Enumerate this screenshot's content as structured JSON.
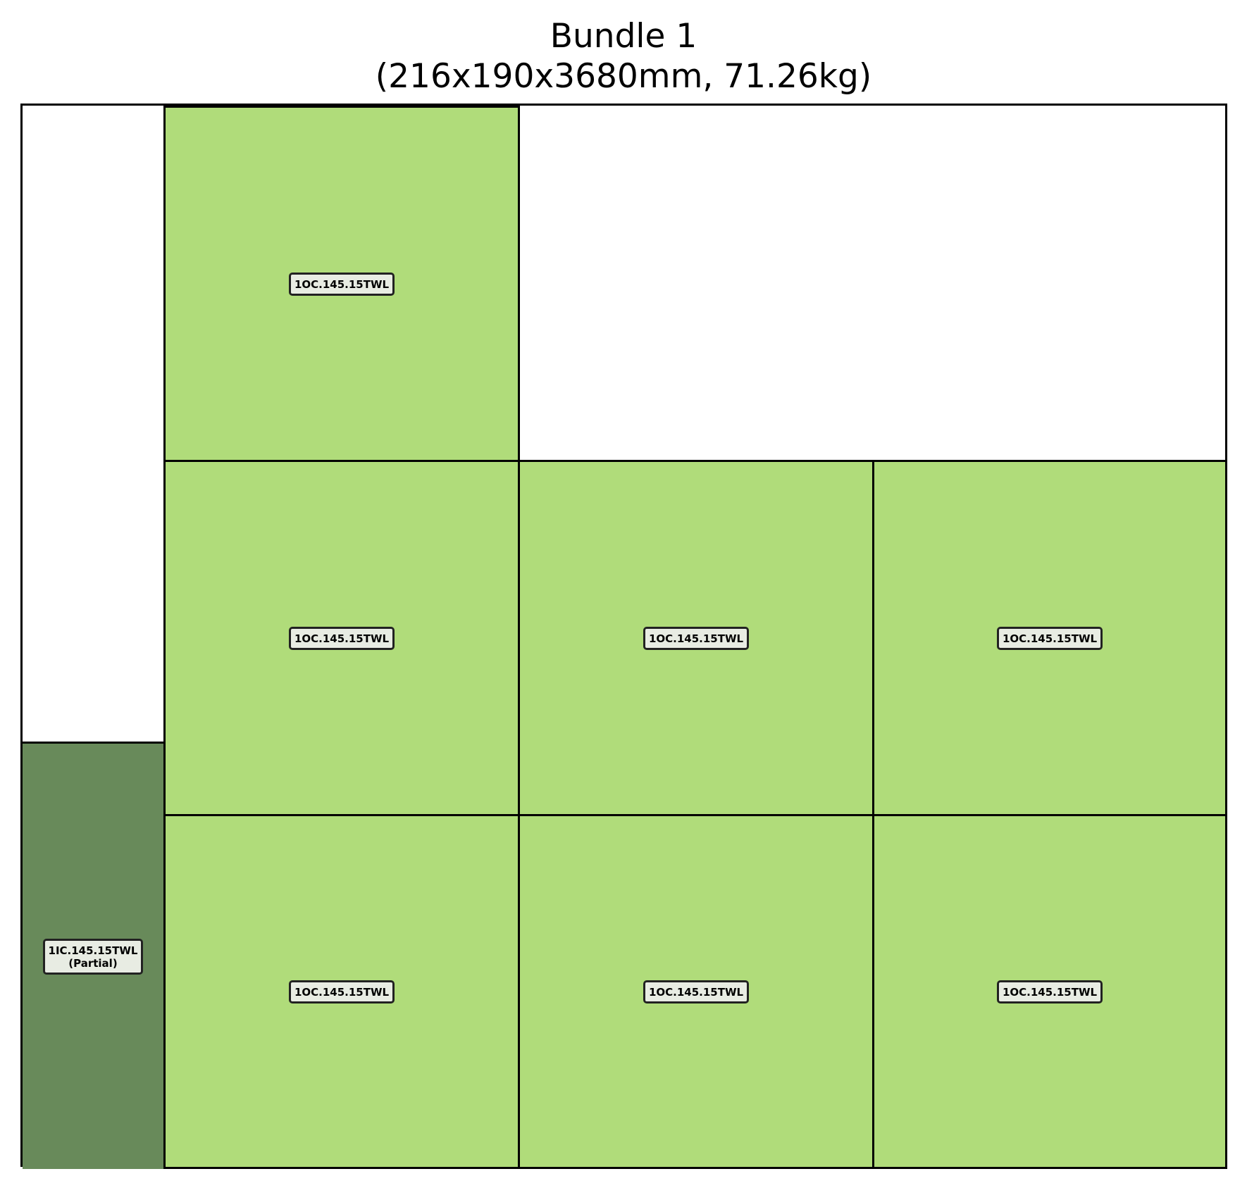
{
  "title": {
    "line1": "Bundle 1",
    "line2": "(216x190x3680mm, 71.26kg)"
  },
  "colors": {
    "outer_piece": "#b0dc7a",
    "inner_piece": "#688a5a",
    "label_bg": "#e8ece3",
    "border": "#000000"
  },
  "pieces": [
    {
      "id": "outer-top-1",
      "kind": "outer",
      "label": "1OC.145.15TWL"
    },
    {
      "id": "outer-mid-1",
      "kind": "outer",
      "label": "1OC.145.15TWL"
    },
    {
      "id": "outer-mid-2",
      "kind": "outer",
      "label": "1OC.145.15TWL"
    },
    {
      "id": "outer-mid-3",
      "kind": "outer",
      "label": "1OC.145.15TWL"
    },
    {
      "id": "outer-bot-1",
      "kind": "outer",
      "label": "1OC.145.15TWL"
    },
    {
      "id": "outer-bot-2",
      "kind": "outer",
      "label": "1OC.145.15TWL"
    },
    {
      "id": "outer-bot-3",
      "kind": "outer",
      "label": "1OC.145.15TWL"
    },
    {
      "id": "inner-partial",
      "kind": "inner",
      "label": "1IC.145.15TWL",
      "note": "(Partial)"
    }
  ]
}
